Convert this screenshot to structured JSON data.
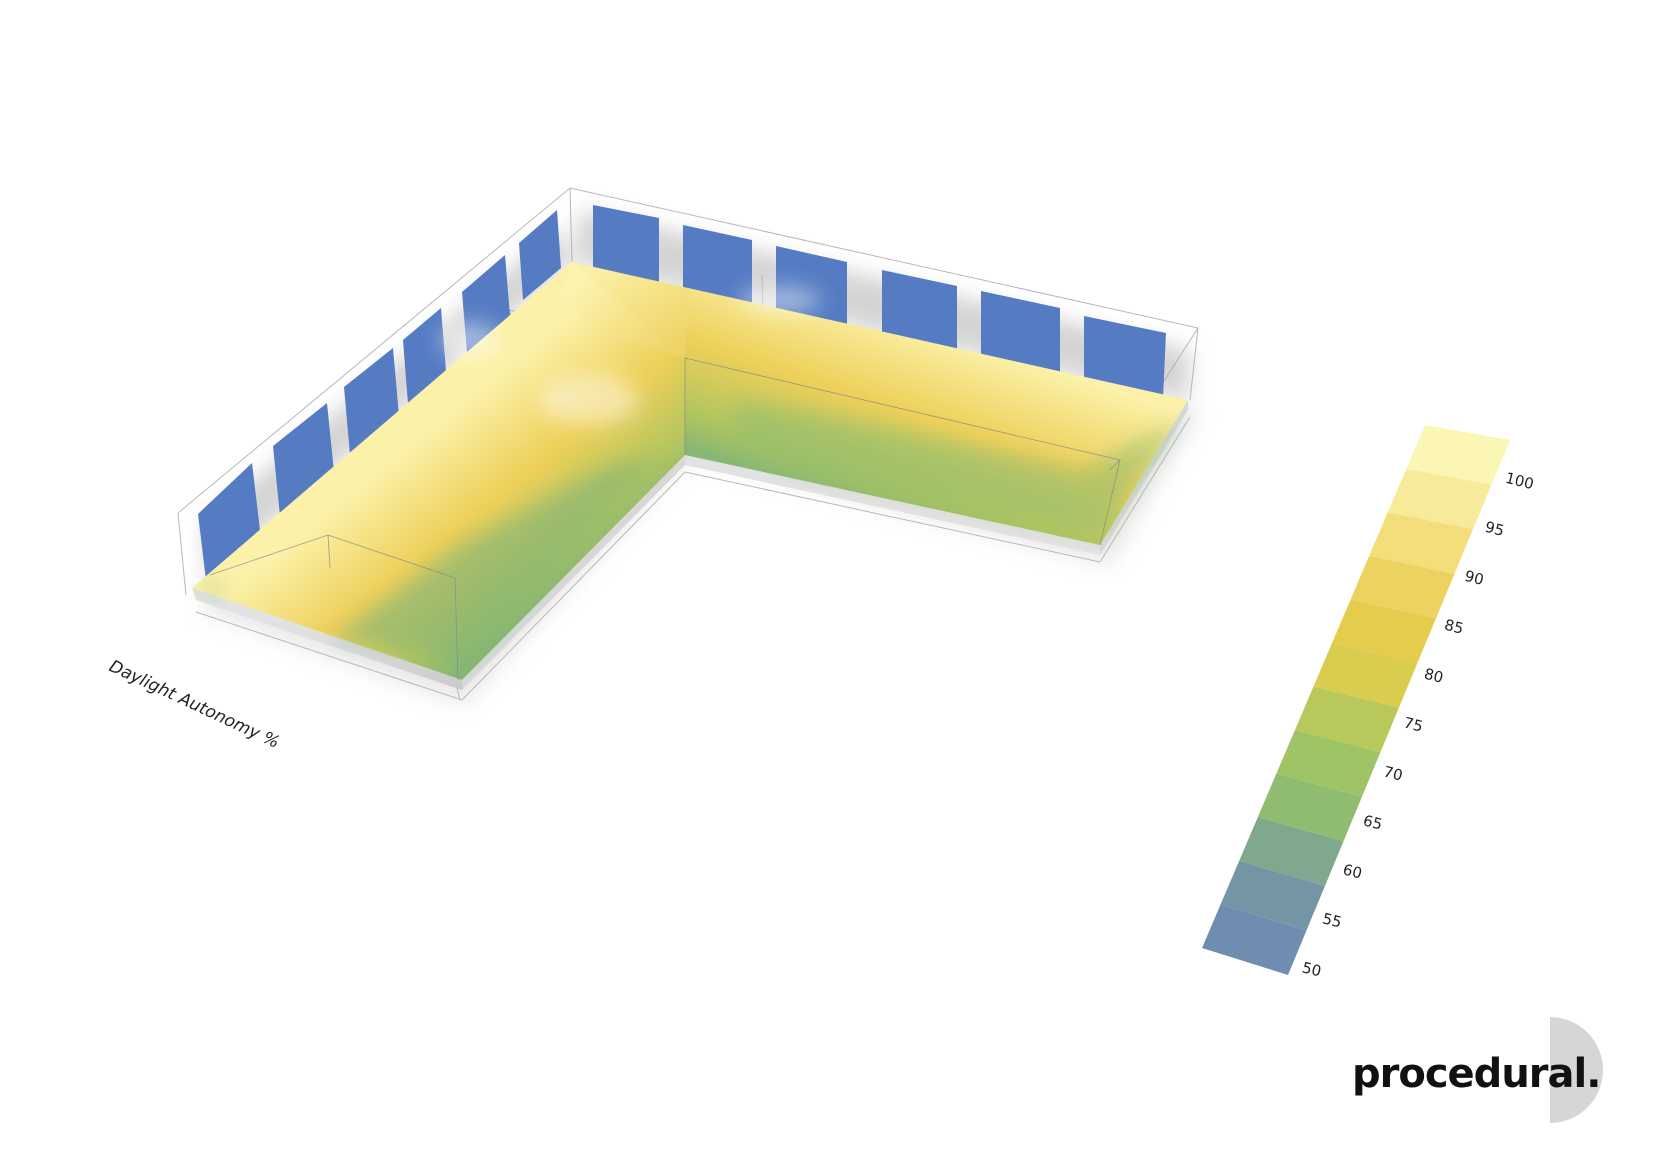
{
  "caption": "Daylight Autonomy %",
  "brand": {
    "name": "procedural."
  },
  "legend": {
    "ticks": [
      "50",
      "55",
      "60",
      "65",
      "70",
      "75",
      "80",
      "85",
      "90",
      "95",
      "100"
    ],
    "colors": [
      "#6f8db0",
      "#7496a4",
      "#7fa88e",
      "#8fbc70",
      "#9ec466",
      "#b9c85a",
      "#d9cc4e",
      "#e6cc4c",
      "#eed260",
      "#f3de7a",
      "#f7eb9a",
      "#fbf6b4"
    ]
  },
  "colors": {
    "window": "#557cc3",
    "floor_bright": "#fbf1a8",
    "floor_mid": "#eed05a",
    "floor_low": "#8fbc70",
    "logo_circle": "#d4d4d4"
  }
}
